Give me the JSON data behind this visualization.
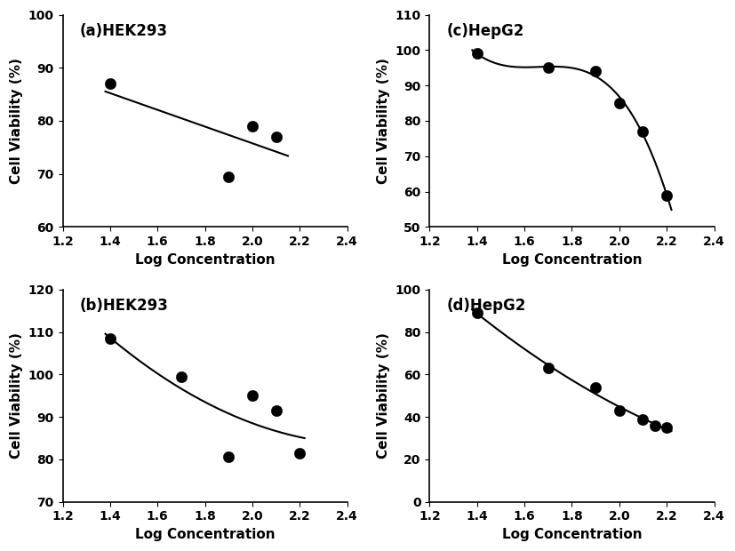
{
  "panel_a": {
    "title": "(a)HEK293",
    "scatter_x": [
      1.4,
      1.9,
      2.0,
      2.1
    ],
    "scatter_y": [
      87,
      69.5,
      79,
      77
    ],
    "ylim": [
      60,
      100
    ],
    "yticks": [
      60,
      70,
      80,
      90,
      100
    ],
    "xlim": [
      1.2,
      2.4
    ],
    "xticks": [
      1.2,
      1.4,
      1.6,
      1.8,
      2.0,
      2.2,
      2.4
    ],
    "line_start": 1.38,
    "line_end": 2.15
  },
  "panel_b": {
    "title": "(b)HEK293",
    "scatter_x": [
      1.4,
      1.7,
      1.9,
      2.0,
      2.1,
      2.2
    ],
    "scatter_y": [
      108.5,
      99.5,
      80.5,
      95.0,
      91.5,
      81.5
    ],
    "ylim": [
      70,
      120
    ],
    "yticks": [
      70,
      80,
      90,
      100,
      110,
      120
    ],
    "xlim": [
      1.2,
      2.4
    ],
    "xticks": [
      1.2,
      1.4,
      1.6,
      1.8,
      2.0,
      2.2,
      2.4
    ],
    "line_start": 1.38,
    "line_end": 2.22
  },
  "panel_c": {
    "title": "(c)HepG2",
    "scatter_x": [
      1.4,
      1.7,
      1.9,
      2.0,
      2.1,
      2.2
    ],
    "scatter_y": [
      99.0,
      95.0,
      94.0,
      85.0,
      77.0,
      59.0
    ],
    "ylim": [
      50,
      110
    ],
    "yticks": [
      50,
      60,
      70,
      80,
      90,
      100,
      110
    ],
    "xlim": [
      1.2,
      2.4
    ],
    "xticks": [
      1.2,
      1.4,
      1.6,
      1.8,
      2.0,
      2.2,
      2.4
    ],
    "line_start": 1.38,
    "line_end": 2.22
  },
  "panel_d": {
    "title": "(d)HepG2",
    "scatter_x": [
      1.4,
      1.7,
      1.9,
      2.0,
      2.1,
      2.15,
      2.2
    ],
    "scatter_y": [
      89.0,
      63.0,
      54.0,
      43.0,
      39.0,
      36.0,
      35.0
    ],
    "ylim": [
      0,
      100
    ],
    "yticks": [
      0,
      20,
      40,
      60,
      80,
      100
    ],
    "xlim": [
      1.2,
      2.4
    ],
    "xticks": [
      1.2,
      1.4,
      1.6,
      1.8,
      2.0,
      2.2,
      2.4
    ],
    "line_start": 1.38,
    "line_end": 2.22
  },
  "xlabel": "Log Concentration",
  "ylabel": "Cell Viability (%)",
  "marker_size": 9,
  "line_color": "black",
  "marker_color": "black",
  "background_color": "white",
  "font_size_label": 11,
  "font_size_title": 12,
  "font_size_tick": 10
}
